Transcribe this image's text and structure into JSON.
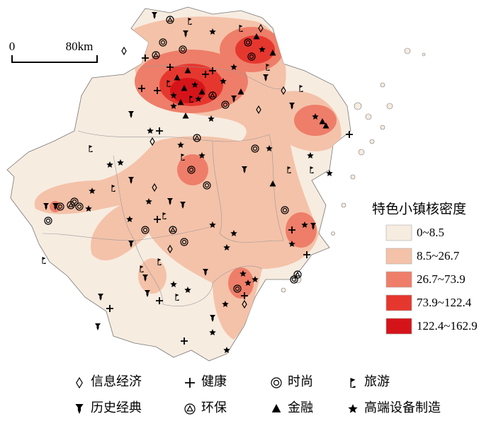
{
  "scale_bar": {
    "start_label": "0",
    "end_label": "80km"
  },
  "density_legend": {
    "title": "特色小镇核密度",
    "classes": [
      {
        "label": "0~8.5",
        "color": "#f7ece0"
      },
      {
        "label": "8.5~26.7",
        "color": "#f4c2a9"
      },
      {
        "label": "26.7~73.9",
        "color": "#ee7e69"
      },
      {
        "label": "73.9~122.4",
        "color": "#e6372f"
      },
      {
        "label": "122.4~162.9",
        "color": "#d5141a"
      }
    ]
  },
  "symbol_legend": [
    {
      "label": "信息经济",
      "symbol": "diamond"
    },
    {
      "label": "健康",
      "symbol": "plus"
    },
    {
      "label": "时尚",
      "symbol": "double-circle"
    },
    {
      "label": "旅游",
      "symbol": "flag"
    },
    {
      "label": "历史经典",
      "symbol": "pin"
    },
    {
      "label": "环保",
      "symbol": "circle-triangle"
    },
    {
      "label": "金融",
      "symbol": "triangle"
    },
    {
      "label": "高端设备制造",
      "symbol": "star"
    }
  ]
}
